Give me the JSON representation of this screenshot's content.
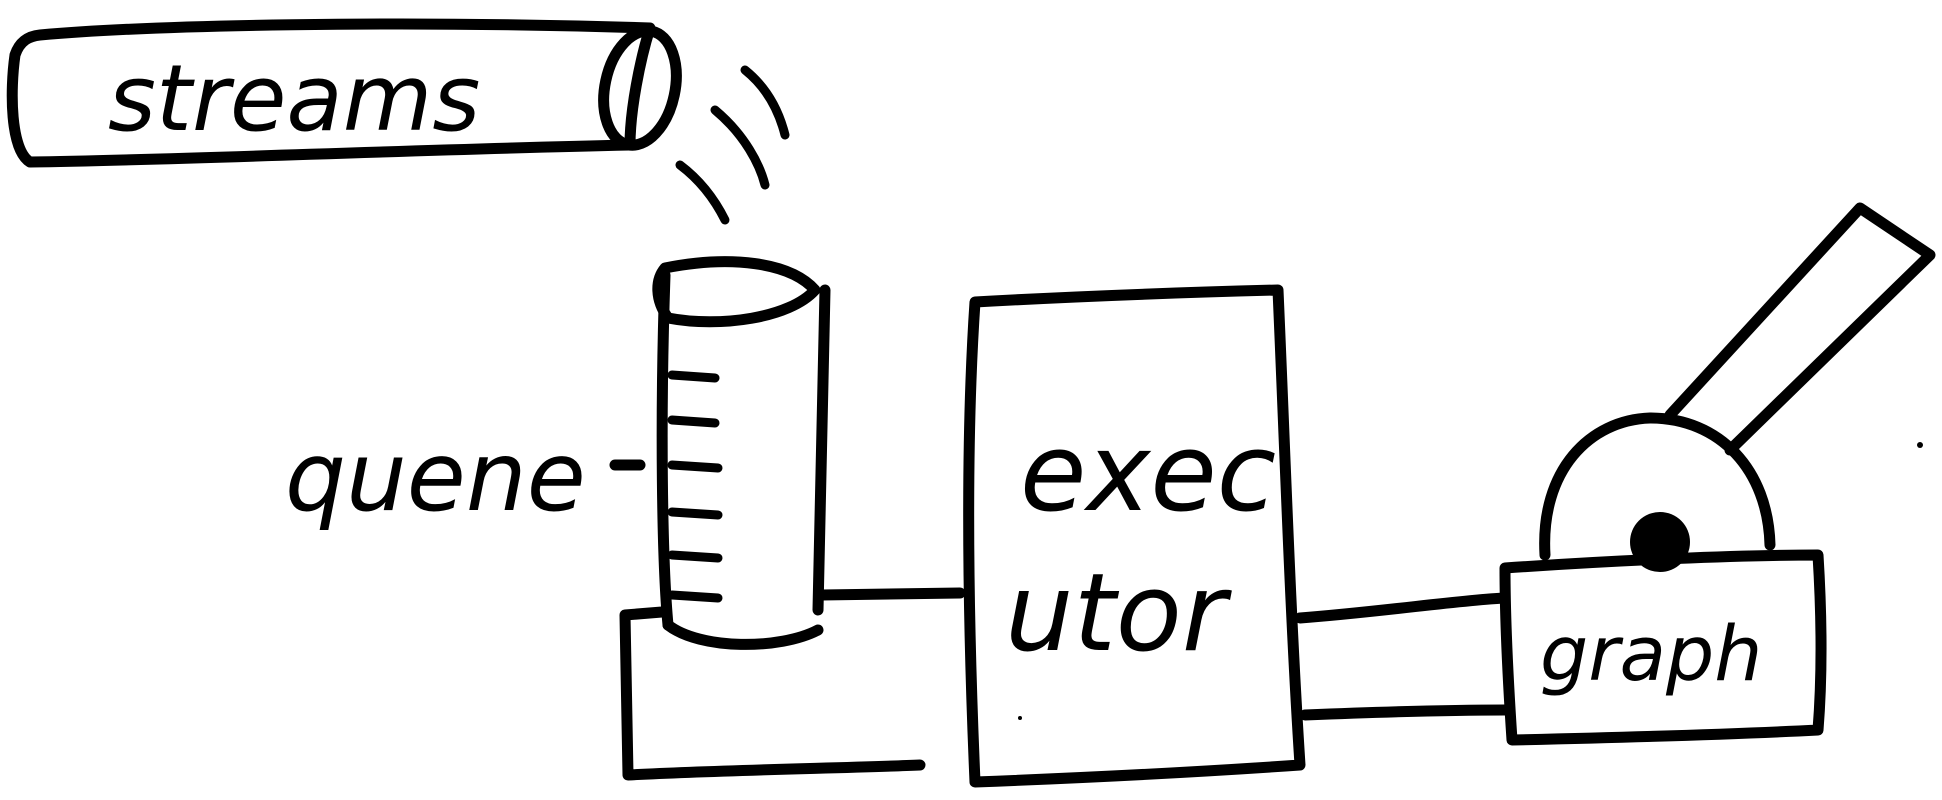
{
  "diagram": {
    "labels": {
      "streams": "streams",
      "queue": "quene",
      "executor_line1": "exec",
      "executor_line2": "utor",
      "graph": "graph"
    },
    "colors": {
      "ink": "#000000",
      "paper": "#ffffff"
    },
    "icons": {
      "streams": "pipe-icon",
      "queue": "measuring-cylinder-icon",
      "graph": "lever-icon"
    }
  }
}
